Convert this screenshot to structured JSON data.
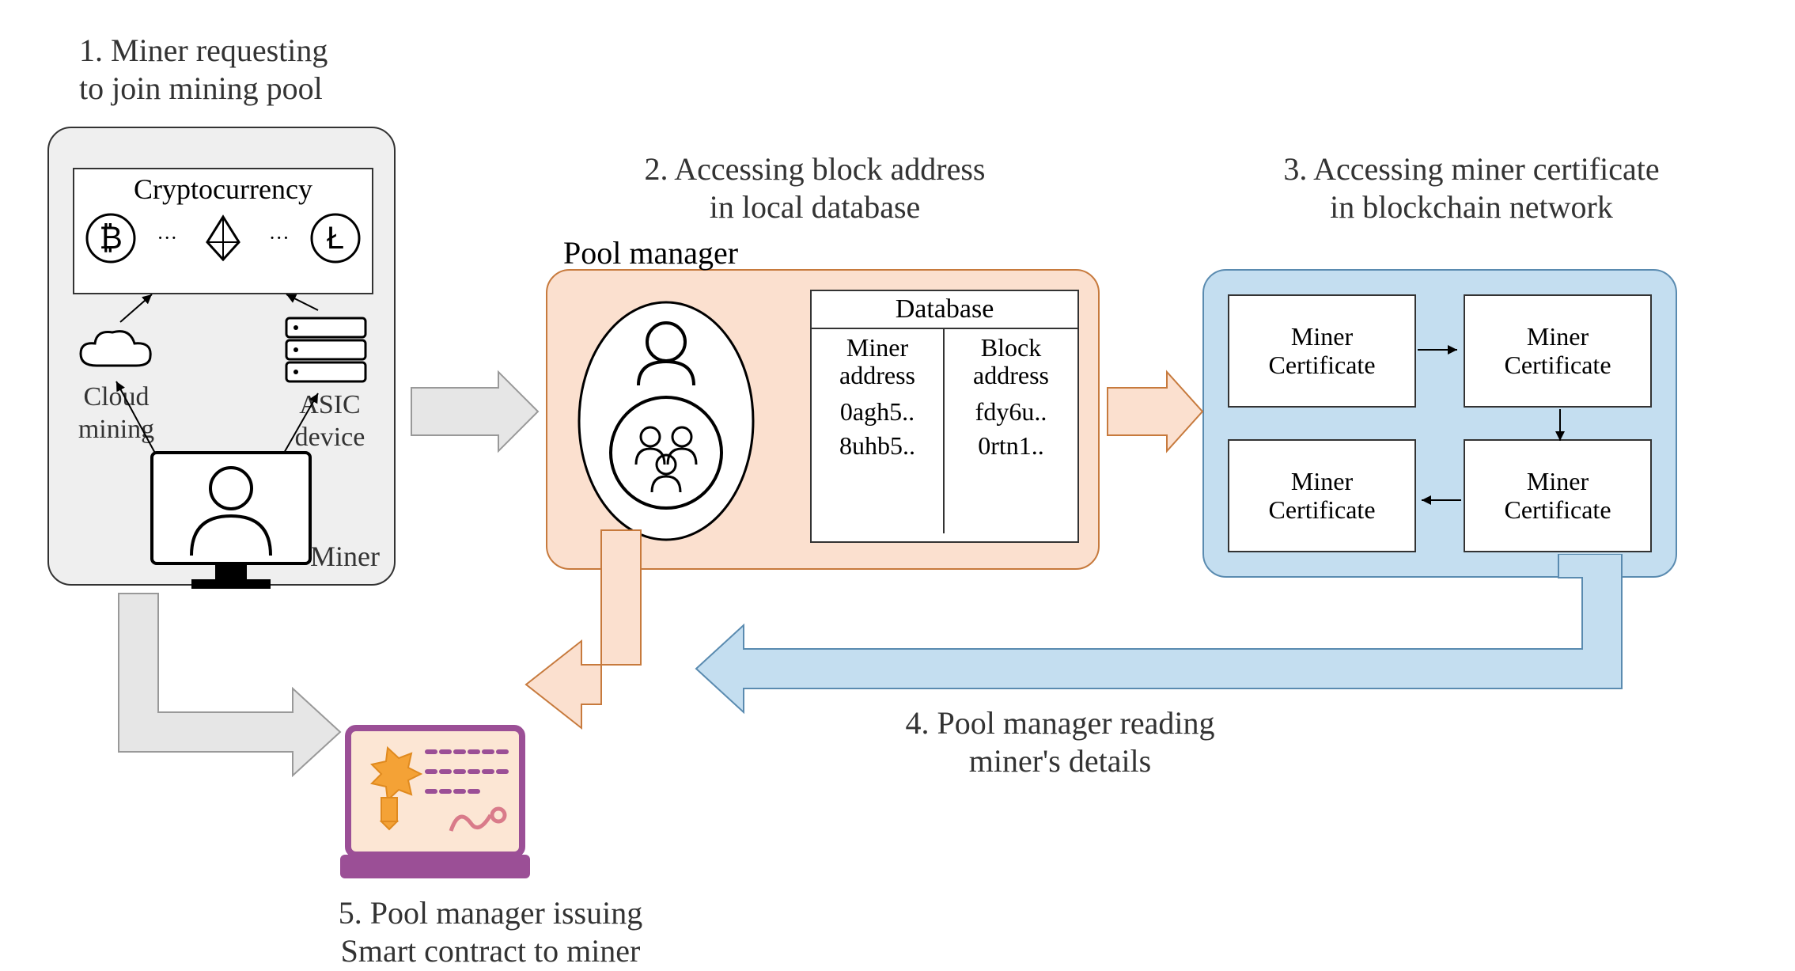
{
  "type": "flowchart",
  "background_color": "#ffffff",
  "font_family": "Times New Roman",
  "label_fontsize": 40,
  "steps": {
    "s1": {
      "line1": "1. Miner requesting",
      "line2": "to join mining pool"
    },
    "s2": {
      "line1": "2. Accessing block address",
      "line2": "in local database"
    },
    "s3": {
      "line1": "3. Accessing miner certificate",
      "line2": "in blockchain network"
    },
    "s4": {
      "line1": "4. Pool manager reading",
      "line2": "miner's details"
    },
    "s5": {
      "line1": "5. Pool manager issuing",
      "line2": "Smart contract to miner"
    }
  },
  "miner": {
    "bg_color": "#efefef",
    "border_color": "#333333",
    "crypto_label": "Cryptocurrency",
    "cloud_label_l1": "Cloud",
    "cloud_label_l2": "mining",
    "asic_label_l1": "ASIC",
    "asic_label_l2": "device",
    "miner_label": "Miner",
    "crypto_icons": [
      "bitcoin",
      "ethereum",
      "litecoin"
    ]
  },
  "pool_manager": {
    "bg_color": "#fbe0cf",
    "border_color": "#c77a3d",
    "title": "Pool manager",
    "database": {
      "title": "Database",
      "columns": [
        "Miner\naddress",
        "Block\naddress"
      ],
      "rows": [
        [
          "0agh5..",
          "fdy6u.."
        ],
        [
          "8uhb5..",
          "0rtn1.."
        ]
      ]
    }
  },
  "certificates": {
    "bg_color": "#c4def0",
    "border_color": "#5a8bb0",
    "item_label_l1": "Miner",
    "item_label_l2": "Certificate"
  },
  "arrows": {
    "gray_fill": "#e6e6e6",
    "gray_stroke": "#999999",
    "orange_fill": "#fbe0cf",
    "orange_stroke": "#c77a3d",
    "blue_fill": "#c4def0",
    "blue_stroke": "#5a8bb0"
  },
  "smart_contract": {
    "frame_color": "#9b4f96",
    "ribbon_color": "#f4a236",
    "bg_color": "#fce6d4"
  }
}
